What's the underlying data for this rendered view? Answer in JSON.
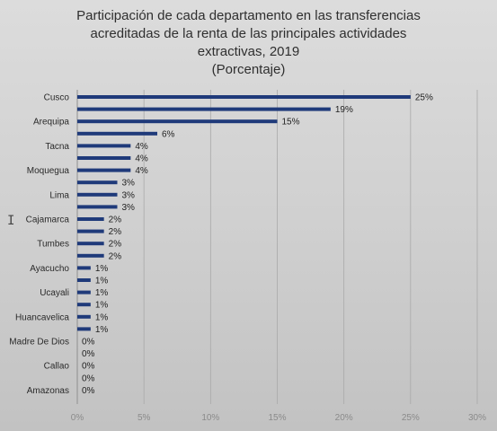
{
  "title_lines": [
    "Participación de cada departamento en las transferencias",
    "acreditadas de la renta de las principales  actividades",
    "extractivas, 2019",
    "(Porcentaje)"
  ],
  "chart_data": {
    "type": "bar",
    "orientation": "horizontal",
    "title": "Participación de cada departamento en las transferencias acreditadas de la renta de las principales actividades extractivas, 2019",
    "subtitle": "(Porcentaje)",
    "categories": [
      "Cusco",
      "",
      "Arequipa",
      "",
      "Tacna",
      "",
      "Moquegua",
      "",
      "Lima",
      "",
      "Cajamarca",
      "",
      "Tumbes",
      "",
      "Ayacucho",
      "",
      "Ucayali",
      "",
      "Huancavelica",
      "",
      "Madre De Dios",
      "",
      "Callao",
      "",
      "Amazonas"
    ],
    "values": [
      25,
      19,
      15,
      6,
      4,
      4,
      4,
      3,
      3,
      3,
      2,
      2,
      2,
      2,
      1,
      1,
      1,
      1,
      1,
      1,
      0,
      0,
      0,
      0,
      0
    ],
    "data_labels": [
      "25%",
      "19%",
      "15%",
      "6%",
      "4%",
      "4%",
      "4%",
      "3%",
      "3%",
      "3%",
      "2%",
      "2%",
      "2%",
      "2%",
      "1%",
      "1%",
      "1%",
      "1%",
      "1%",
      "1%",
      "0%",
      "0%",
      "0%",
      "0%",
      "0%"
    ],
    "xlim": [
      0,
      30
    ],
    "x_ticks": [
      "0%",
      "5%",
      "10%",
      "15%",
      "20%",
      "25%",
      "30%"
    ],
    "xlabel": "",
    "ylabel": "",
    "grid": true,
    "bar_color": "#1f3a7a"
  }
}
